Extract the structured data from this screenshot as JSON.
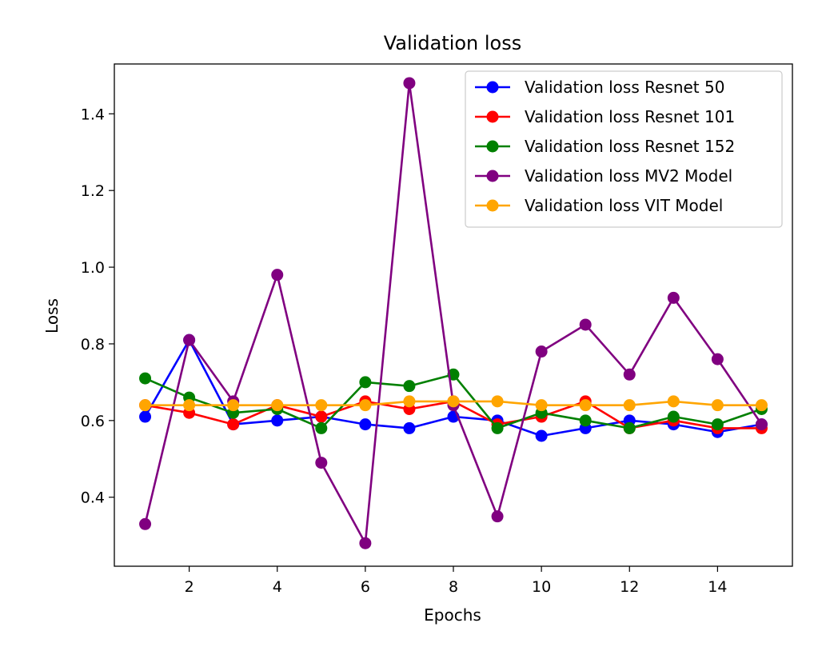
{
  "chart_data": {
    "type": "line",
    "title": "Validation loss",
    "xlabel": "Epochs",
    "ylabel": "Loss",
    "xlim": [
      0.3,
      15.7
    ],
    "ylim": [
      0.22,
      1.53
    ],
    "xticks": [
      2,
      4,
      6,
      8,
      10,
      12,
      14
    ],
    "yticks": [
      0.4,
      0.6,
      0.8,
      1.0,
      1.2,
      1.4
    ],
    "ytick_labels": [
      "0.4",
      "0.6",
      "0.8",
      "1.0",
      "1.2",
      "1.4"
    ],
    "grid": false,
    "legend_position": "top-right",
    "x": [
      1,
      2,
      3,
      4,
      5,
      6,
      7,
      8,
      9,
      10,
      11,
      12,
      13,
      14,
      15
    ],
    "series": [
      {
        "name": "Validation loss Resnet 50",
        "color": "#0000ff",
        "values": [
          0.61,
          0.81,
          0.59,
          0.6,
          0.61,
          0.59,
          0.58,
          0.61,
          0.6,
          0.56,
          0.58,
          0.6,
          0.59,
          0.57,
          0.59
        ]
      },
      {
        "name": "Validation loss Resnet 101",
        "color": "#ff0000",
        "values": [
          0.64,
          0.62,
          0.59,
          0.64,
          0.61,
          0.65,
          0.63,
          0.65,
          0.59,
          0.61,
          0.65,
          0.58,
          0.6,
          0.58,
          0.58
        ]
      },
      {
        "name": "Validation loss Resnet 152",
        "color": "#008000",
        "values": [
          0.71,
          0.66,
          0.62,
          0.63,
          0.58,
          0.7,
          0.69,
          0.72,
          0.58,
          0.62,
          0.6,
          0.58,
          0.61,
          0.59,
          0.63
        ]
      },
      {
        "name": "Validation loss MV2 Model",
        "color": "#800080",
        "values": [
          0.33,
          0.81,
          0.65,
          0.98,
          0.49,
          0.28,
          1.48,
          0.64,
          0.35,
          0.78,
          0.85,
          0.72,
          0.92,
          0.76,
          0.59
        ]
      },
      {
        "name": "Validation loss VIT Model",
        "color": "#ffa500",
        "values": [
          0.64,
          0.64,
          0.64,
          0.64,
          0.64,
          0.64,
          0.65,
          0.65,
          0.65,
          0.64,
          0.64,
          0.64,
          0.65,
          0.64,
          0.64
        ]
      }
    ]
  }
}
